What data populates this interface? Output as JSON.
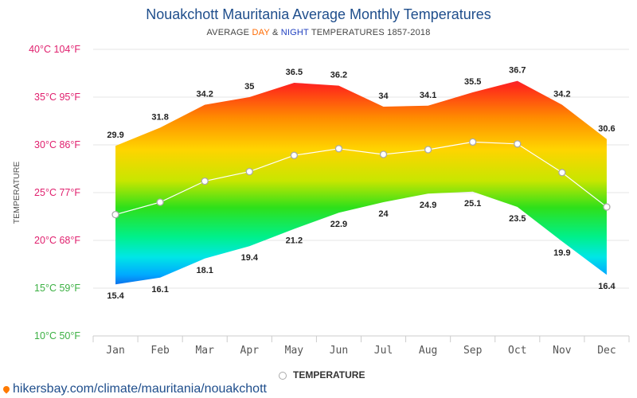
{
  "title": "Nouakchott Mauritania Average Monthly Temperatures",
  "subtitle": {
    "prefix": "AVERAGE ",
    "day": "DAY",
    "amp": " & ",
    "night": "NIGHT",
    "suffix": " TEMPERATURES 1857-2018"
  },
  "legend_label": "TEMPERATURE",
  "footer_url": "hikersbay.com/climate/mauritania/nouakchott",
  "chart_data": {
    "type": "area",
    "ylabel": "TEMPERATURE",
    "ylim": [
      10,
      40
    ],
    "y_ticks": [
      {
        "value": 40,
        "label": "40°C 104°F",
        "color": "#e0206e"
      },
      {
        "value": 35,
        "label": "35°C 95°F",
        "color": "#e0206e"
      },
      {
        "value": 30,
        "label": "30°C 86°F",
        "color": "#e0206e"
      },
      {
        "value": 25,
        "label": "25°C 77°F",
        "color": "#e0206e"
      },
      {
        "value": 20,
        "label": "20°C 68°F",
        "color": "#e0206e"
      },
      {
        "value": 15,
        "label": "15°C 59°F",
        "color": "#3cb043"
      },
      {
        "value": 10,
        "label": "10°C 50°F",
        "color": "#3cb043"
      }
    ],
    "categories": [
      "Jan",
      "Feb",
      "Mar",
      "Apr",
      "May",
      "Jun",
      "Jul",
      "Aug",
      "Sep",
      "Oct",
      "Nov",
      "Dec"
    ],
    "series": [
      {
        "values": [
          29.9,
          31.8,
          34.2,
          35,
          36.5,
          36.2,
          34,
          34.1,
          35.5,
          36.7,
          34.2,
          30.6
        ]
      },
      {
        "values": [
          15.4,
          16.1,
          18.1,
          19.4,
          21.2,
          22.9,
          24,
          24.9,
          25.1,
          23.5,
          19.9,
          16.4
        ]
      },
      {
        "name": "TEMPERATURE",
        "values": [
          22.7,
          24.0,
          26.2,
          27.2,
          28.9,
          29.6,
          29.0,
          29.5,
          30.3,
          30.1,
          27.1,
          23.5
        ]
      }
    ],
    "grid": true,
    "legend": "bottom"
  }
}
